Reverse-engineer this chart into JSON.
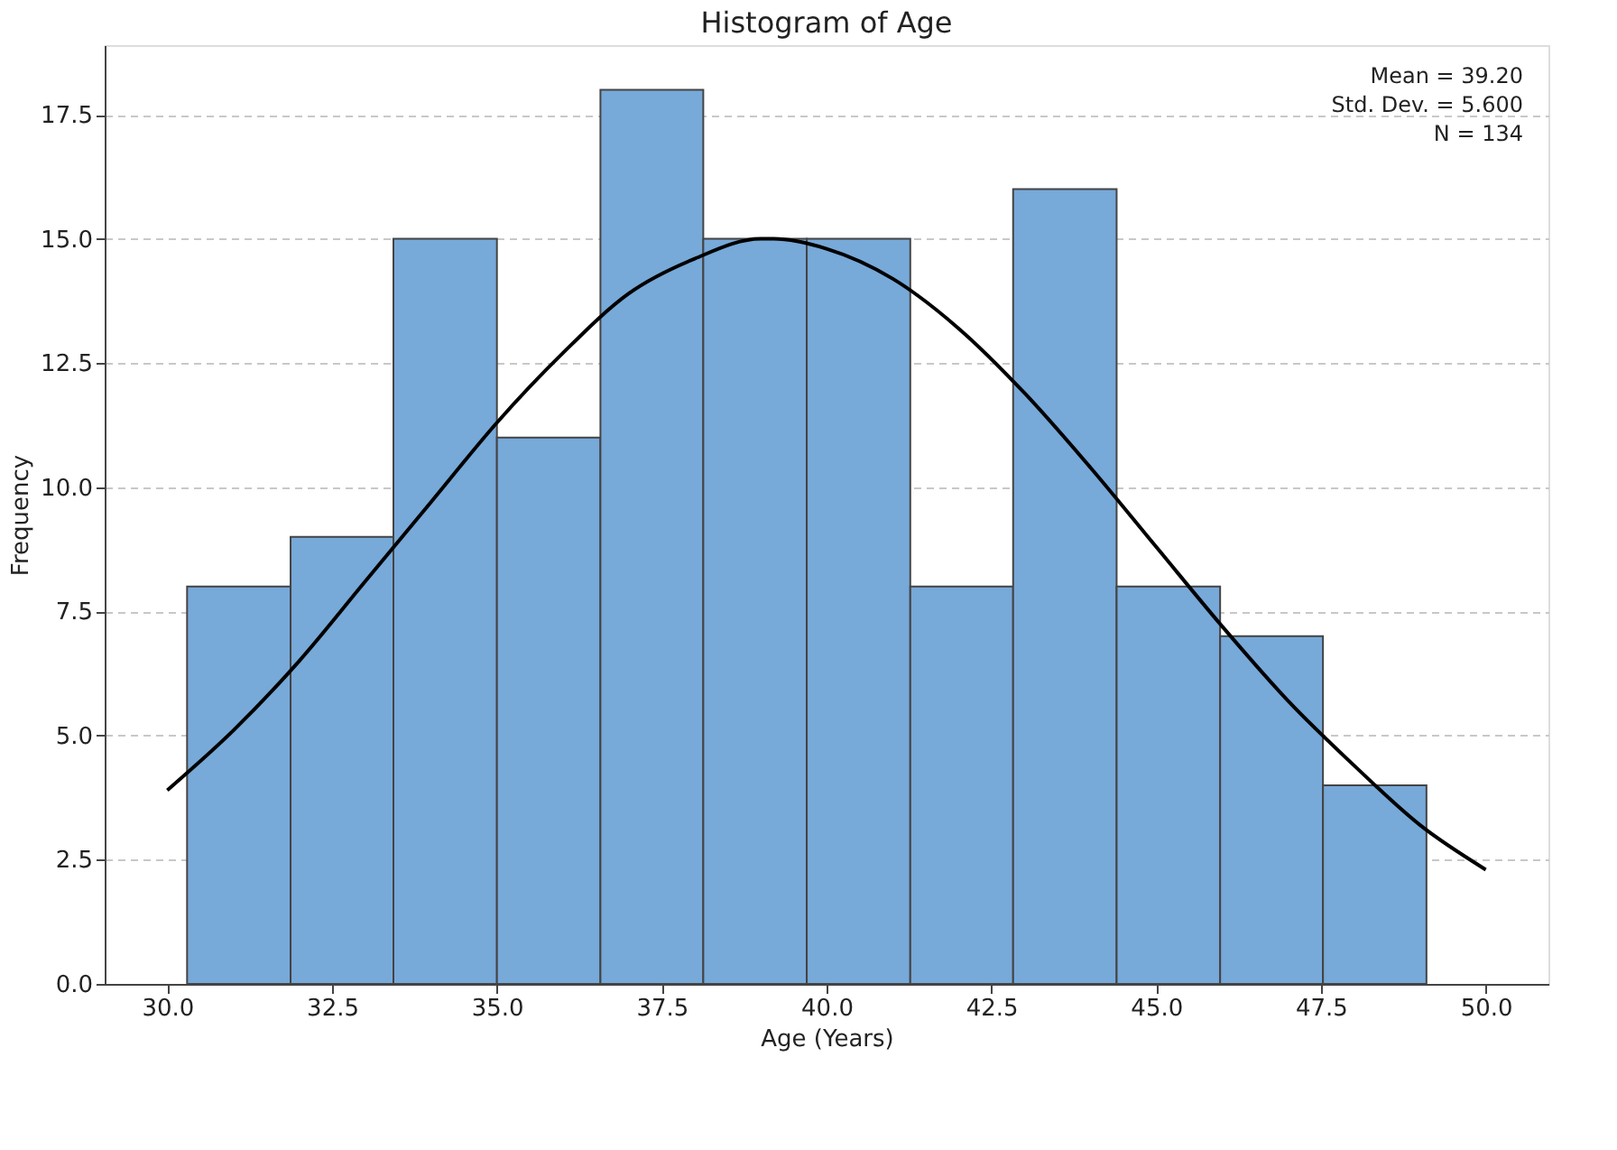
{
  "chart_data": {
    "type": "histogram",
    "title": "Histogram of Age",
    "xlabel": "Age (Years)",
    "ylabel": "Frequency",
    "series": [
      {
        "type": "histogram",
        "color": "#77a9d9",
        "bins": [
          30.3,
          31.87,
          33.43,
          35.0,
          36.57,
          38.13,
          39.7,
          41.27,
          42.83,
          44.4,
          45.97,
          47.53,
          49.1
        ],
        "values": [
          8,
          9,
          15,
          11,
          18,
          15,
          15,
          8,
          16,
          8,
          7,
          4
        ]
      },
      {
        "type": "line",
        "color": "#000000",
        "x": [
          30,
          31,
          32,
          33,
          34,
          35,
          36,
          37,
          38,
          39,
          39.2,
          40,
          41,
          42,
          43,
          44,
          45,
          46,
          47,
          48,
          49,
          50
        ],
        "values": [
          3.9,
          5.1,
          6.5,
          8.1,
          9.7,
          11.3,
          12.7,
          13.9,
          14.6,
          15.0,
          15.0,
          14.8,
          14.2,
          13.2,
          11.9,
          10.4,
          8.8,
          7.2,
          5.7,
          4.4,
          3.2,
          2.3
        ]
      }
    ],
    "xlim": [
      29.05,
      50.95
    ],
    "xticks": [
      {
        "value": 30,
        "label": "30.0"
      },
      {
        "value": 32.5,
        "label": "32.5"
      },
      {
        "value": 35,
        "label": "35.0"
      },
      {
        "value": 37.5,
        "label": "37.5"
      },
      {
        "value": 40,
        "label": "40.0"
      },
      {
        "value": 42.5,
        "label": "42.5"
      },
      {
        "value": 45,
        "label": "45.0"
      },
      {
        "value": 47.5,
        "label": "47.5"
      },
      {
        "value": 50,
        "label": "50.0"
      }
    ],
    "ylim": [
      0,
      18.9
    ],
    "yticks": [
      {
        "value": 0,
        "label": "0.0"
      },
      {
        "value": 2.5,
        "label": "2.5"
      },
      {
        "value": 5,
        "label": "5.0"
      },
      {
        "value": 7.5,
        "label": "7.5"
      },
      {
        "value": 10,
        "label": "10.0"
      },
      {
        "value": 12.5,
        "label": "12.5"
      },
      {
        "value": 15,
        "label": "15.0"
      },
      {
        "value": 17.5,
        "label": "17.5"
      }
    ],
    "grid": "y",
    "annotations": [
      "Mean = 39.20",
      "Std. Dev. = 5.600",
      "N = 134"
    ]
  }
}
